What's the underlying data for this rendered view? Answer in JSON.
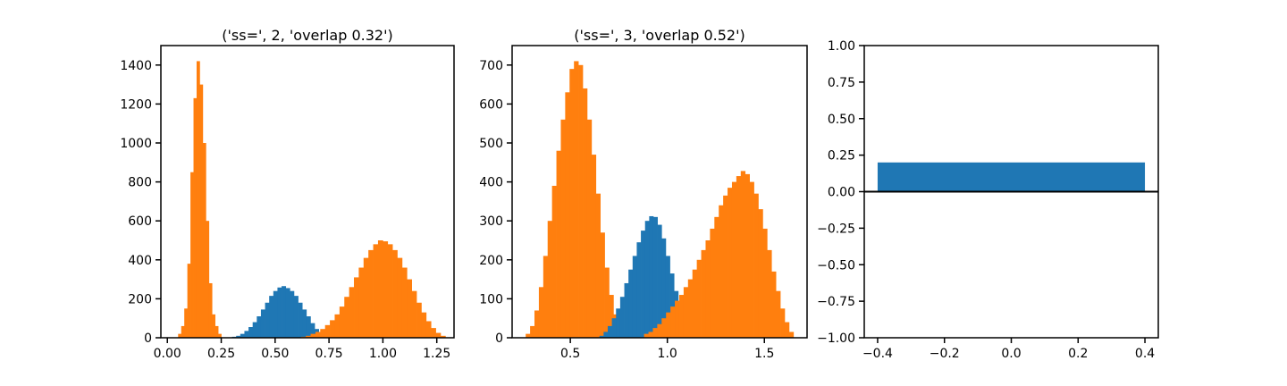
{
  "figure": {
    "colors": {
      "blue": "#1f77b4",
      "orange": "#ff7f0e"
    }
  },
  "chart_data": [
    {
      "type": "histogram",
      "title": "('ss=', 2, 'overlap 0.32')",
      "xlim": [
        -0.03,
        1.33
      ],
      "ylim": [
        0,
        1500
      ],
      "xticks": [
        0.0,
        0.25,
        0.5,
        0.75,
        1.0,
        1.25
      ],
      "xtick_labels": [
        "0.00",
        "0.25",
        "0.50",
        "0.75",
        "1.00",
        "1.25"
      ],
      "yticks": [
        0,
        200,
        400,
        600,
        800,
        1000,
        1200,
        1400
      ],
      "ytick_labels": [
        "0",
        "200",
        "400",
        "600",
        "800",
        "1000",
        "1200",
        "1400"
      ],
      "series": [
        {
          "color": "#ff7f0e",
          "bin_start": 0.05,
          "bin_end": 0.25,
          "counts": [
            20,
            60,
            150,
            380,
            850,
            1230,
            1420,
            1300,
            1000,
            600,
            280,
            120,
            60,
            20
          ]
        },
        {
          "color": "#1f77b4",
          "bin_start": 0.3,
          "bin_end": 0.76,
          "counts": [
            5,
            10,
            20,
            35,
            55,
            80,
            110,
            145,
            180,
            215,
            240,
            258,
            265,
            255,
            240,
            215,
            180,
            145,
            110,
            75,
            45,
            25,
            10,
            5
          ]
        },
        {
          "color": "#ff7f0e",
          "bin_start": 0.62,
          "bin_end": 1.29,
          "counts": [
            5,
            10,
            20,
            30,
            45,
            65,
            90,
            120,
            160,
            210,
            260,
            310,
            360,
            410,
            450,
            480,
            500,
            495,
            480,
            450,
            410,
            360,
            300,
            240,
            180,
            130,
            85,
            50,
            25,
            10
          ]
        }
      ]
    },
    {
      "type": "histogram",
      "title": "('ss=', 3, 'overlap 0.52')",
      "xlim": [
        0.2,
        1.72
      ],
      "ylim": [
        0,
        750
      ],
      "xticks": [
        0.5,
        1.0,
        1.5
      ],
      "xtick_labels": [
        "0.5",
        "1.0",
        "1.5"
      ],
      "yticks": [
        0,
        100,
        200,
        300,
        400,
        500,
        600,
        700
      ],
      "ytick_labels": [
        "0",
        "100",
        "200",
        "300",
        "400",
        "500",
        "600",
        "700"
      ],
      "series": [
        {
          "color": "#ff7f0e",
          "bin_start": 0.27,
          "bin_end": 0.79,
          "counts": [
            10,
            30,
            70,
            130,
            210,
            300,
            390,
            480,
            560,
            630,
            690,
            710,
            700,
            640,
            560,
            470,
            370,
            270,
            180,
            110,
            60,
            25,
            10
          ]
        },
        {
          "color": "#1f77b4",
          "bin_start": 0.65,
          "bin_end": 1.12,
          "counts": [
            5,
            15,
            30,
            50,
            75,
            105,
            140,
            175,
            210,
            245,
            275,
            300,
            312,
            310,
            290,
            255,
            210,
            165,
            120,
            80,
            45,
            20
          ]
        },
        {
          "color": "#ff7f0e",
          "bin_start": 0.88,
          "bin_end": 1.65,
          "counts": [
            10,
            15,
            25,
            35,
            50,
            65,
            80,
            95,
            110,
            130,
            150,
            175,
            200,
            225,
            250,
            280,
            310,
            340,
            365,
            385,
            400,
            415,
            428,
            420,
            400,
            370,
            330,
            280,
            225,
            170,
            120,
            75,
            40,
            15
          ]
        }
      ]
    },
    {
      "type": "bar",
      "categories": [
        0
      ],
      "values": [
        0.2
      ],
      "bar_width": 0.8,
      "color": "#1f77b4",
      "hline_y": 0,
      "xlim": [
        -0.44,
        0.44
      ],
      "ylim": [
        -1.0,
        1.0
      ],
      "xticks": [
        -0.4,
        -0.2,
        0.0,
        0.2,
        0.4
      ],
      "xtick_labels": [
        "−0.4",
        "−0.2",
        "0.0",
        "0.2",
        "0.4"
      ],
      "yticks": [
        -1.0,
        -0.75,
        -0.5,
        -0.25,
        0.0,
        0.25,
        0.5,
        0.75,
        1.0
      ],
      "ytick_labels": [
        "−1.00",
        "−0.75",
        "−0.50",
        "−0.25",
        "0.00",
        "0.25",
        "0.50",
        "0.75",
        "1.00"
      ]
    }
  ]
}
